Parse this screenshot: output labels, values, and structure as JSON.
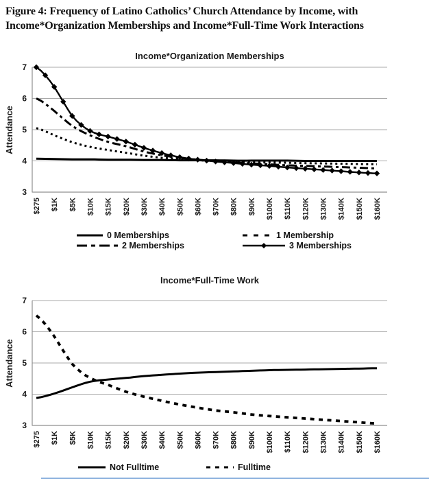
{
  "figure_title": {
    "line1": "Figure 4: Frequency of Latino Catholics’ Church Attendance by Income, with",
    "line2": "Income*Organization Memberships and Income*Full-Time Work Interactions"
  },
  "colors": {
    "line": "#000000",
    "grid": "#a8a8a8",
    "axis": "#8f8f8f",
    "accent_bottom_rule": "#7da7d9"
  },
  "chart_data": [
    {
      "type": "line",
      "title": "Income*Organization Memberships",
      "ylabel": "Attendance",
      "xlabel": "",
      "ylim": [
        3,
        7
      ],
      "yticks": [
        3,
        4,
        5,
        6,
        7
      ],
      "grid": true,
      "legend_position": "bottom",
      "categories": [
        "$275",
        "$1K",
        "$5K",
        "$10K",
        "$15K",
        "$20K",
        "$30K",
        "$40K",
        "$50K",
        "$60K",
        "$70K",
        "$80K",
        "$90K",
        "$100K",
        "$110K",
        "$120K",
        "$130K",
        "$140K",
        "$150K",
        "$160K"
      ],
      "series": [
        {
          "name": "0 Memberships",
          "style": "solid",
          "marker": "none",
          "values": [
            4.07,
            4.06,
            4.05,
            4.05,
            4.04,
            4.04,
            4.03,
            4.03,
            4.02,
            4.02,
            4.02,
            4.01,
            4.01,
            4.01,
            4.01,
            4.0,
            4.0,
            4.0,
            4.0,
            4.0
          ]
        },
        {
          "name": "1 Membership",
          "style": "dotted",
          "marker": "none",
          "values": [
            5.05,
            4.82,
            4.6,
            4.45,
            4.35,
            4.26,
            4.17,
            4.1,
            4.06,
            4.02,
            4.0,
            3.98,
            3.96,
            3.95,
            3.94,
            3.93,
            3.92,
            3.91,
            3.9,
            3.89
          ]
        },
        {
          "name": "2 Memberships",
          "style": "dashdot",
          "marker": "none",
          "values": [
            6.0,
            5.6,
            5.12,
            4.82,
            4.61,
            4.47,
            4.3,
            4.18,
            4.1,
            4.04,
            3.99,
            3.95,
            3.92,
            3.89,
            3.86,
            3.84,
            3.82,
            3.8,
            3.78,
            3.76
          ]
        },
        {
          "name": "3 Memberships",
          "style": "solid",
          "marker": "diamond",
          "values": [
            7.0,
            6.37,
            5.44,
            4.96,
            4.78,
            4.62,
            4.42,
            4.25,
            4.12,
            4.04,
            3.98,
            3.93,
            3.88,
            3.84,
            3.79,
            3.75,
            3.71,
            3.67,
            3.63,
            3.6
          ]
        }
      ]
    },
    {
      "type": "line",
      "title": "Income*Full-Time Work",
      "ylabel": "Attendance",
      "xlabel": "",
      "ylim": [
        3,
        7
      ],
      "yticks": [
        3,
        4,
        5,
        6,
        7
      ],
      "grid": true,
      "legend_position": "bottom",
      "categories": [
        "$275",
        "$1K",
        "$5K",
        "$10K",
        "$15K",
        "$20K",
        "$30K",
        "$40K",
        "$50K",
        "$60K",
        "$70K",
        "$80K",
        "$90K",
        "$100K",
        "$110K",
        "$120K",
        "$130K",
        "$140K",
        "$150K",
        "$160K"
      ],
      "series": [
        {
          "name": "Not Fulltime",
          "style": "solid",
          "marker": "none",
          "values": [
            3.88,
            4.02,
            4.22,
            4.4,
            4.47,
            4.52,
            4.58,
            4.62,
            4.66,
            4.69,
            4.71,
            4.73,
            4.75,
            4.77,
            4.78,
            4.79,
            4.8,
            4.81,
            4.82,
            4.83
          ]
        },
        {
          "name": "Fulltime",
          "style": "dashed",
          "marker": "none",
          "values": [
            6.52,
            5.85,
            4.97,
            4.52,
            4.3,
            4.08,
            3.92,
            3.79,
            3.67,
            3.57,
            3.48,
            3.42,
            3.35,
            3.3,
            3.26,
            3.22,
            3.18,
            3.14,
            3.1,
            3.06
          ]
        }
      ]
    }
  ]
}
